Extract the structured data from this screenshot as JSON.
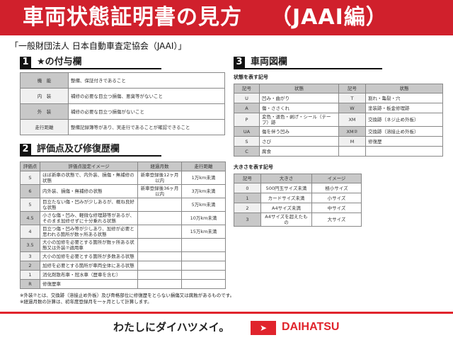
{
  "header": {
    "title": "車両状態証明書の見方",
    "subtitle": "（JAAI編）"
  },
  "organization": "「一般財団法人 日本自動車査定協会（JAAI）」",
  "section1": {
    "num": "1",
    "title": "★の付与欄",
    "rows": [
      {
        "label": "機　能",
        "text": "整備、保証付きであること"
      },
      {
        "label": "内　装",
        "text": "補修の必要な目立つ損傷、悪臭等がないこと"
      },
      {
        "label": "外　装",
        "text": "補修の必要な目立つ損傷がないこと"
      },
      {
        "label": "走行距離",
        "text": "整備記録簿等があり、実走行であることが確認できること"
      }
    ]
  },
  "section2": {
    "num": "2",
    "title": "評価点及び修復歴欄",
    "headers": [
      "評価点",
      "評価点設定イメージ",
      "経過月数",
      "走行距離"
    ],
    "rows": [
      [
        "S",
        "ほぼ新車の状態で、内外装、損傷・無補修の状態",
        "新車登録後12ヶ月以内",
        "1万km未満"
      ],
      [
        "6",
        "内外装、損傷・無補修の状態",
        "新車登録後36ヶ月以内",
        "3万km未満"
      ],
      [
        "5",
        "目立たない傷・凹みが少しあるが、概ね良好な状態",
        "",
        "5万km未満"
      ],
      [
        "4.5",
        "小さな傷・凹み、軽微な修理跡等があるが、そのまま加修せずに十分乗れる状態",
        "",
        "10万km未満"
      ],
      [
        "4",
        "目立つ傷・凹み等が少しあり、加修が必要と思われる箇所が数ヶ所ある状態",
        "",
        "15万km未満"
      ],
      [
        "3.5",
        "大小の加修を必要とする箇所が数ヶ所ある状態又は外装⑦適用車",
        "",
        ""
      ],
      [
        "3",
        "大小の加修を必要とする箇所が多数ある状態",
        "",
        ""
      ],
      [
        "2",
        "加修を必要とする箇所が車両全体にある状態",
        "",
        ""
      ],
      [
        "1",
        "消化剤散布車・冠水車（歴車を含む）",
        "",
        ""
      ],
      [
        "R",
        "修復歴車",
        "",
        ""
      ]
    ]
  },
  "notes": [
    "※外装⑦とは、交換跡（溶接止め外板）及び骨格部位に修復歴をとらない損傷又は腐蝕があるものです。",
    "※経過月数の計算は、初年度登録月を一ヶ月として計算します。"
  ],
  "section3": {
    "num": "3",
    "title": "車両図欄",
    "condition_label": "状態を表す記号",
    "condition_headers": [
      "記号",
      "状態",
      "記号",
      "状態"
    ],
    "condition_rows": [
      [
        "U",
        "凹み・曲がり",
        "T",
        "割れ・亀裂・穴"
      ],
      [
        "A",
        "傷・ささくれ",
        "W",
        "塗装跡・板金修理跡"
      ],
      [
        "P",
        "変色・退色・剥げ・シール（テープ）跡",
        "XM",
        "交換跡（ネジ止め外板）"
      ],
      [
        "UA",
        "傷を伴う凹み",
        "XM②",
        "交換跡（溶接止め外板）"
      ],
      [
        "S",
        "さび",
        "M",
        "修復歴"
      ],
      [
        "C",
        "腐食",
        "",
        ""
      ]
    ],
    "size_label": "大きさを表す記号",
    "size_headers": [
      "記号",
      "大きさ",
      "イメージ"
    ],
    "size_rows": [
      [
        "0",
        "500円玉サイズ未満",
        "極小サイズ"
      ],
      [
        "1",
        "カードサイズ未満",
        "小サイズ"
      ],
      [
        "2",
        "A4サイズ未満",
        "中サイズ"
      ],
      [
        "3",
        "A4サイズを超えたもの",
        "大サイズ"
      ]
    ]
  },
  "footer": {
    "slogan": "わたしにダイハツメイ。",
    "brand": "DAIHATSU"
  },
  "colors": {
    "brand_red": "#d0202c"
  }
}
